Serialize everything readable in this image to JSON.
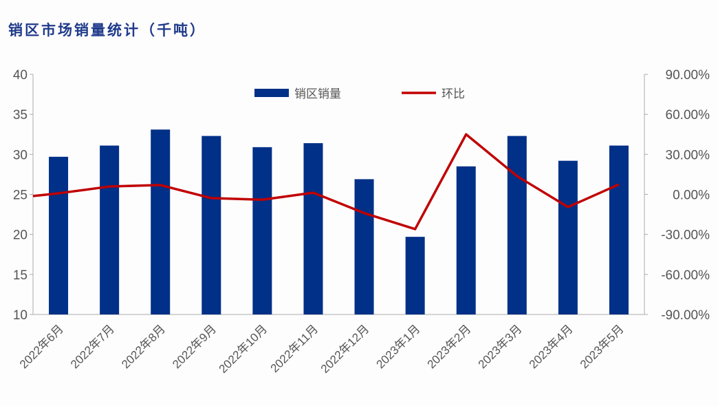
{
  "chart_data": {
    "type": "bar+line",
    "title": "销区市场销量统计（千吨）",
    "categories": [
      "2022年6月",
      "2022年7月",
      "2022年8月",
      "2022年9月",
      "2022年10月",
      "2022年11月",
      "2022年12月",
      "2023年1月",
      "2023年2月",
      "2023年3月",
      "2023年4月",
      "2023年5月"
    ],
    "series": [
      {
        "name": "销区销量",
        "type": "bar",
        "axis": "left",
        "color": "#003087",
        "values": [
          29.7,
          31.1,
          33.1,
          32.3,
          30.9,
          31.4,
          26.9,
          19.7,
          28.5,
          32.3,
          29.2,
          31.1
        ]
      },
      {
        "name": "环比",
        "type": "line",
        "axis": "right",
        "color": "#c00000",
        "values": [
          0.8,
          5.9,
          7.0,
          -2.8,
          -4.0,
          1.3,
          -14.0,
          -26.0,
          45.0,
          13.7,
          -9.5,
          7.5
        ]
      }
    ],
    "ylim": [
      10,
      40
    ],
    "yticks": [
      "10",
      "15",
      "20",
      "25",
      "30",
      "35",
      "40"
    ],
    "y2lim": [
      -90,
      90
    ],
    "y2ticks": [
      "-90.00%",
      "-60.00%",
      "-30.00%",
      "0.00%",
      "30.00%",
      "60.00%",
      "90.00%"
    ],
    "legend": "top-center"
  }
}
